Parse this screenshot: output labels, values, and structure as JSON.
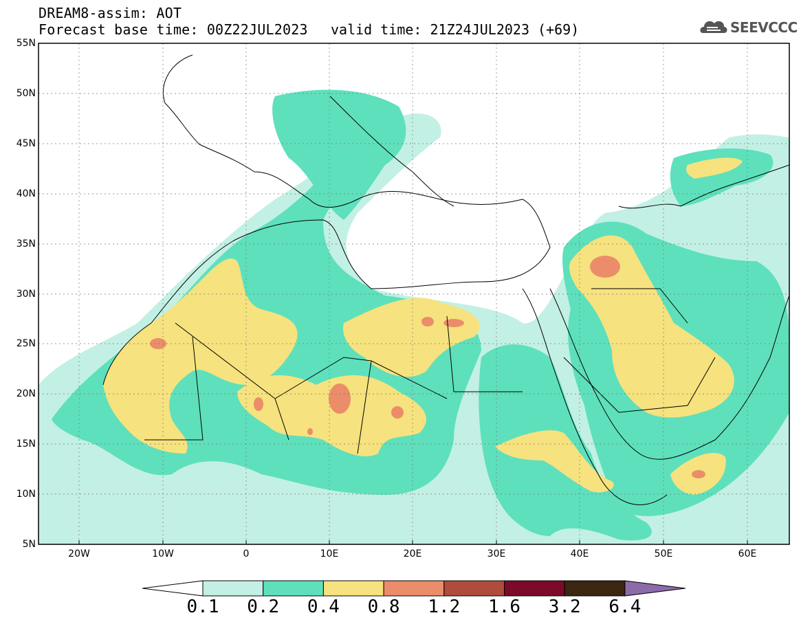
{
  "header": {
    "title_line1": "DREAM8-assim: AOT",
    "title_line2": "Forecast base time: 00Z22JUL2023",
    "valid_time": "valid time: 21Z24JUL2023 (+69)",
    "logo_text": "SEEVCCC",
    "logo_icon": "cloud-icon"
  },
  "map": {
    "variable": "AOT",
    "region": "North Africa, Middle East, Mediterranean",
    "lon_range": [
      -25,
      65
    ],
    "lat_range": [
      5,
      55
    ],
    "x_ticks": [
      "20W",
      "10W",
      "0",
      "10E",
      "20E",
      "30E",
      "40E",
      "50E",
      "60E"
    ],
    "y_ticks": [
      "55N",
      "50N",
      "45N",
      "40N",
      "35N",
      "30N",
      "25N",
      "20N",
      "15N",
      "10N",
      "5N"
    ],
    "grid": "dotted"
  },
  "colorbar": {
    "labels": [
      "0.1",
      "0.2",
      "0.4",
      "0.8",
      "1.2",
      "1.6",
      "3.2",
      "6.4"
    ],
    "colors": [
      "#c3f0e4",
      "#5ee0bc",
      "#f6e27e",
      "#eb8d6a",
      "#b04c3b",
      "#7c0a2a",
      "#3a2611",
      "#8d6ba8"
    ]
  },
  "colors": {
    "lev1": "#c3f0e4",
    "lev2": "#5ee0bc",
    "lev3": "#f6e27e",
    "lev4": "#eb8d6a"
  }
}
